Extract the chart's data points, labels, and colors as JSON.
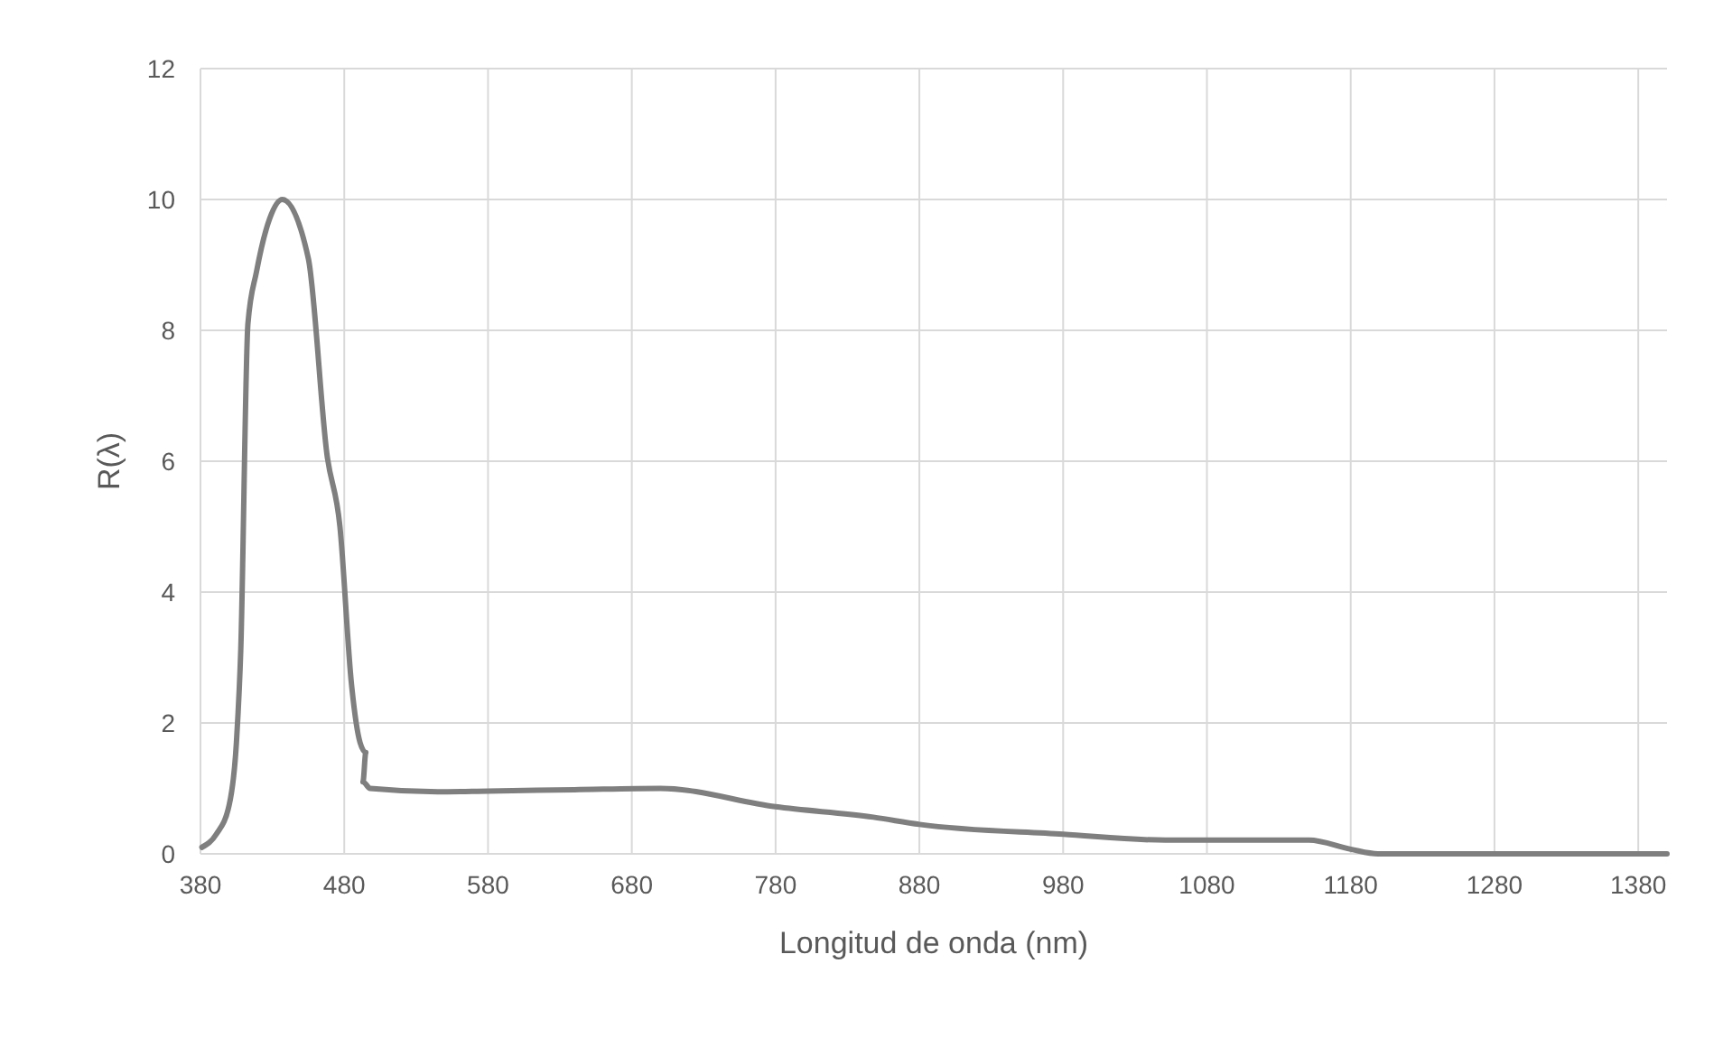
{
  "chart_data": {
    "type": "line",
    "xlabel": "Longitud de onda (nm)",
    "ylabel": "R(λ)",
    "xlim": [
      380,
      1400
    ],
    "xticks": [
      380,
      480,
      580,
      680,
      780,
      880,
      980,
      1080,
      1180,
      1280,
      1380
    ],
    "ylim": [
      0,
      12
    ],
    "yticks": [
      0,
      2,
      4,
      6,
      8,
      10,
      12
    ],
    "grid": true,
    "series": [
      {
        "color": "#7f7f7f",
        "x": [
          381,
          391,
          400,
          405,
          408,
          413,
          419,
          428,
          437,
          455,
          468,
          477,
          485,
          491,
          495,
          493,
          498,
          545,
          580,
          640,
          700,
          780,
          848,
          880,
          980,
          1051,
          1151,
          1180,
          1199,
          1300,
          1400
        ],
        "values": [
          0.1,
          0.3,
          0.75,
          1.7,
          3.1,
          8.1,
          8.9,
          9.7,
          10.0,
          9.1,
          6.1,
          5.0,
          2.6,
          1.7,
          1.55,
          1.1,
          1.0,
          0.95,
          0.96,
          0.98,
          1.0,
          0.72,
          0.56,
          0.45,
          0.3,
          0.21,
          0.21,
          0.07,
          0.0,
          0.0,
          0.0
        ]
      }
    ]
  }
}
